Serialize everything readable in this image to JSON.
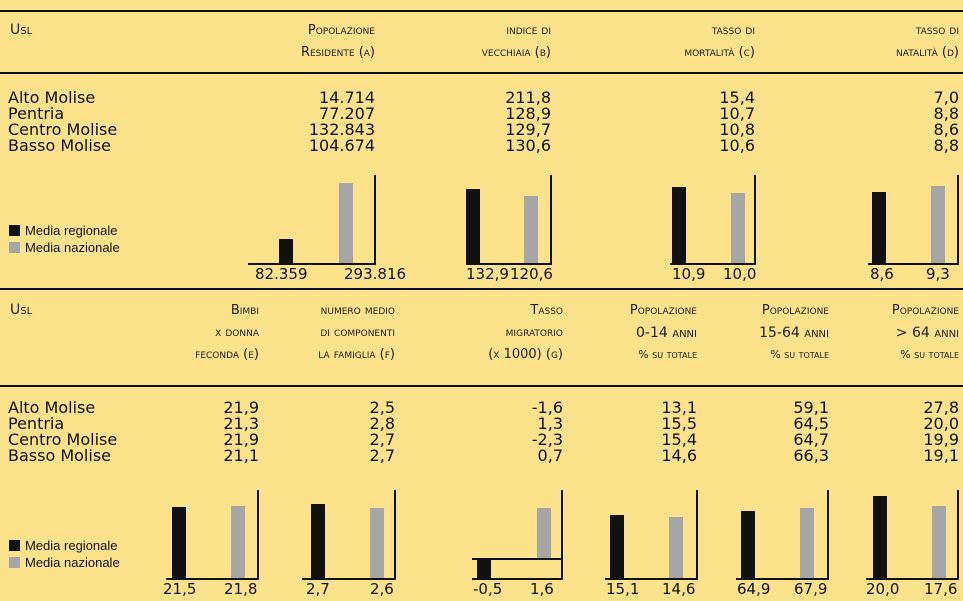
{
  "top": {
    "headers": {
      "usl": "Usl",
      "pop_l1": "Popolazione",
      "pop_l2": "Residente (a)",
      "vecch_l1": "indice di",
      "vecch_l2": "vecchiaia (b)",
      "mort_l1": "tasso di",
      "mort_l2": "mortalità (c)",
      "nat_l1": "tasso di",
      "nat_l2": "natalità (d)"
    },
    "rows": [
      {
        "name": "Alto Molise",
        "pop": "14.714",
        "vecch": "211,8",
        "mort": "15,4",
        "nat": "7,0"
      },
      {
        "name": "Pentria",
        "pop": "77.207",
        "vecch": "128,9",
        "mort": "10,7",
        "nat": "8,8"
      },
      {
        "name": "Centro Molise",
        "pop": "132.843",
        "vecch": "129,7",
        "mort": "10,8",
        "nat": "8,6"
      },
      {
        "name": "Basso Molise",
        "pop": "104.674",
        "vecch": "130,6",
        "mort": "10,6",
        "nat": "8,8"
      }
    ],
    "averages": {
      "pop": [
        "82.359",
        "293.816"
      ],
      "vecch": [
        "132,9",
        "120,6"
      ],
      "mort": [
        "10,9",
        "10,0"
      ],
      "nat": [
        "8,6",
        "9,3"
      ]
    }
  },
  "bottom": {
    "headers": {
      "usl": "Usl",
      "bimbi_l1": "Bimbi",
      "bimbi_l2": "x donna",
      "bimbi_l3": "feconda (e)",
      "fam_l1": "numero medio",
      "fam_l2": "di componenti",
      "fam_l3": "la famiglia (f)",
      "migr_l1": "Tasso",
      "migr_l2": "migratorio",
      "migr_l3": "(x 1000) (g)",
      "p014_l1": "Popolazione",
      "p014_l2": "0-14 anni",
      "p014_l3": "% su totale",
      "p1564_l1": "Popolazione",
      "p1564_l2": "15-64 anni",
      "p1564_l3": "% su totale",
      "p64_l1": "Popolazione",
      "p64_l2": "> 64 anni",
      "p64_l3": "% su totale"
    },
    "rows": [
      {
        "name": "Alto Molise",
        "bimbi": "21,9",
        "fam": "2,5",
        "migr": "-1,6",
        "p014": "13,1",
        "p1564": "59,1",
        "p64": "27,8"
      },
      {
        "name": "Pentria",
        "bimbi": "21,3",
        "fam": "2,8",
        "migr": "1,3",
        "p014": "15,5",
        "p1564": "64,5",
        "p64": "20,0"
      },
      {
        "name": "Centro Molise",
        "bimbi": "21,9",
        "fam": "2,7",
        "migr": "-2,3",
        "p014": "15,4",
        "p1564": "64,7",
        "p64": "19,9"
      },
      {
        "name": "Basso Molise",
        "bimbi": "21,1",
        "fam": "2,7",
        "migr": "0,7",
        "p014": "14,6",
        "p1564": "66,3",
        "p64": "19,1"
      }
    ],
    "averages": {
      "bimbi": [
        "21,5",
        "21,8"
      ],
      "fam": [
        "2,7",
        "2,6"
      ],
      "migr": [
        "-0,5",
        "1,6"
      ],
      "p014": [
        "15,1",
        "14,6"
      ],
      "p1564": [
        "64,9",
        "67,9"
      ],
      "p64": [
        "20,0",
        "17,6"
      ]
    }
  },
  "legend": {
    "regional": "Media regionale",
    "national": "Media nazionale"
  },
  "colors": {
    "background": "#fce28b",
    "regional_bar": "#111111",
    "national_bar": "#a6a6a6"
  }
}
